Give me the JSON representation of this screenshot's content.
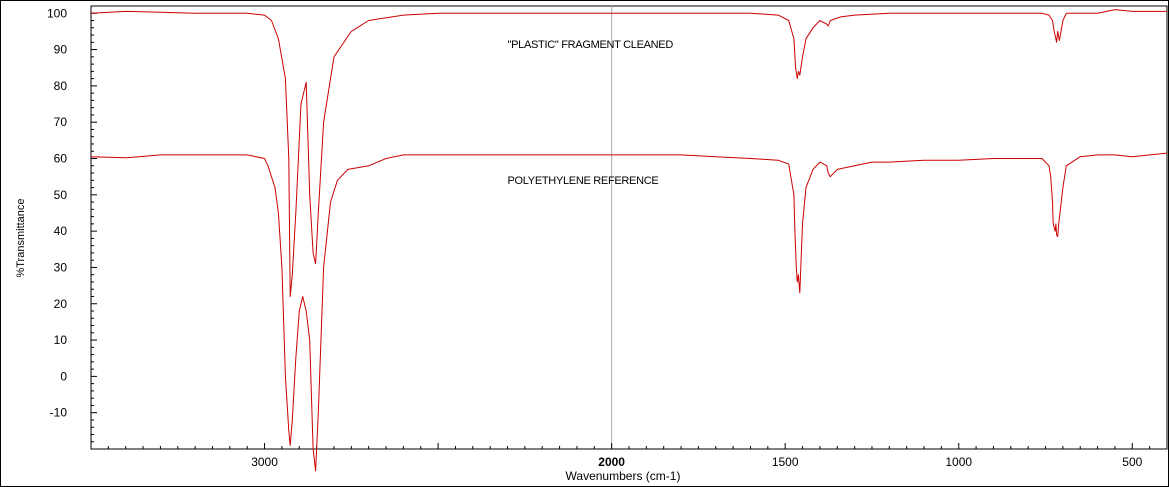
{
  "chart_data": {
    "type": "line",
    "title": "",
    "xlabel": "Wavenumbers (cm-1)",
    "ylabel": "%Transmittance",
    "xlim": [
      3500,
      400
    ],
    "ylim": [
      -20,
      102
    ],
    "x_reversed": true,
    "x_ticks": [
      3000,
      2000,
      1500,
      1000,
      500
    ],
    "y_ticks": [
      100,
      90,
      80,
      70,
      60,
      50,
      40,
      30,
      20,
      10,
      0,
      -10
    ],
    "x_tick_labels": [
      "3000",
      "2000",
      "1500",
      "1000",
      "500"
    ],
    "y_tick_labels": [
      "100",
      "90",
      "80",
      "70",
      "60",
      "50",
      "40",
      "30",
      "20",
      "10",
      "0",
      "-10"
    ],
    "reference_line_x": 2000,
    "grid": false,
    "series_color": "#cc0000",
    "annotations": [
      {
        "text": "\"PLASTIC\" FRAGMENT CLEANED",
        "x": 2300,
        "y": 90.5
      },
      {
        "text": "POLYETHYLENE REFERENCE",
        "x": 2300,
        "y": 53
      }
    ],
    "series": [
      {
        "name": "\"PLASTIC\" FRAGMENT CLEANED",
        "x": [
          3500,
          3400,
          3300,
          3200,
          3100,
          3050,
          3000,
          2980,
          2960,
          2940,
          2930,
          2926,
          2920,
          2910,
          2895,
          2880,
          2870,
          2860,
          2853,
          2845,
          2830,
          2800,
          2750,
          2700,
          2600,
          2500,
          2400,
          2300,
          2200,
          2100,
          2000,
          1900,
          1800,
          1700,
          1600,
          1520,
          1490,
          1475,
          1470,
          1465,
          1462,
          1458,
          1450,
          1440,
          1420,
          1400,
          1380,
          1376,
          1370,
          1340,
          1300,
          1200,
          1100,
          1000,
          900,
          800,
          760,
          740,
          730,
          725,
          720,
          718,
          715,
          710,
          700,
          690,
          650,
          600,
          550,
          500,
          450,
          400
        ],
        "y": [
          100,
          100.5,
          100.3,
          100,
          100,
          100,
          99.5,
          98,
          93,
          82,
          60,
          22,
          28,
          45,
          75,
          81,
          50,
          34,
          31,
          45,
          70,
          88,
          95,
          98,
          99.5,
          100,
          100,
          100,
          100,
          100,
          100,
          100,
          100,
          100,
          100,
          99.5,
          98,
          93,
          85,
          82,
          84,
          83,
          88,
          93,
          96,
          98,
          97,
          96.5,
          98,
          99,
          99.5,
          100,
          100,
          100,
          100,
          100,
          100,
          99.5,
          98,
          95,
          93,
          92,
          95,
          92.5,
          98,
          100,
          100,
          100,
          101,
          100.5,
          100.5,
          100.5
        ]
      },
      {
        "name": "POLYETHYLENE REFERENCE",
        "x": [
          3500,
          3400,
          3300,
          3200,
          3100,
          3050,
          3000,
          2990,
          2970,
          2960,
          2950,
          2940,
          2930,
          2926,
          2920,
          2910,
          2900,
          2890,
          2880,
          2870,
          2860,
          2853,
          2845,
          2830,
          2810,
          2790,
          2760,
          2700,
          2650,
          2600,
          2500,
          2400,
          2300,
          2200,
          2100,
          2000,
          1900,
          1800,
          1700,
          1600,
          1520,
          1490,
          1475,
          1472,
          1468,
          1465,
          1462,
          1458,
          1455,
          1450,
          1440,
          1420,
          1400,
          1380,
          1376,
          1370,
          1350,
          1300,
          1250,
          1200,
          1100,
          1000,
          900,
          800,
          760,
          740,
          735,
          730,
          728,
          725,
          722,
          720,
          718,
          715,
          712,
          700,
          690,
          650,
          600,
          550,
          500,
          450,
          400
        ],
        "y": [
          60.5,
          60.2,
          61,
          61,
          61,
          61,
          60,
          58,
          52,
          45,
          30,
          0,
          -15,
          -19,
          -12,
          5,
          18,
          22,
          18,
          10,
          -20,
          -26,
          -10,
          30,
          48,
          54,
          57,
          58,
          60,
          61,
          61,
          61,
          61,
          61,
          61,
          61,
          61,
          61,
          60.5,
          60,
          59.5,
          58.5,
          50,
          40,
          30,
          26,
          28,
          23,
          30,
          42,
          52,
          57,
          59,
          58,
          56,
          55,
          57,
          58,
          59,
          59,
          59.5,
          59.5,
          60,
          60,
          60,
          58,
          55,
          48,
          42,
          41,
          40,
          42,
          39,
          38.5,
          42,
          52,
          58,
          60.5,
          61,
          61,
          60.5,
          61,
          61.5
        ]
      }
    ]
  }
}
